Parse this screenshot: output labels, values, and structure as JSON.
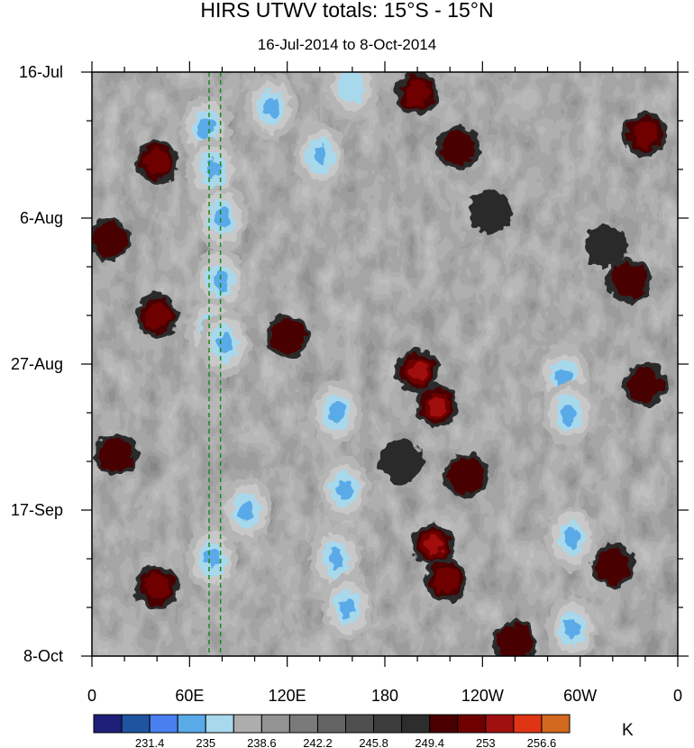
{
  "chart_data": {
    "type": "heatmap",
    "title": "HIRS UTWV totals: 15°S - 15°N",
    "subtitle": "16-Jul-2014 to 8-Oct-2014",
    "xlabel": "",
    "ylabel": "",
    "x_ticks": [
      {
        "lon": 0,
        "label": "0"
      },
      {
        "lon": 60,
        "label": "60E"
      },
      {
        "lon": 120,
        "label": "120E"
      },
      {
        "lon": 180,
        "label": "180"
      },
      {
        "lon": 240,
        "label": "120W"
      },
      {
        "lon": 300,
        "label": "60W"
      },
      {
        "lon": 360,
        "label": "0"
      }
    ],
    "xlim": [
      0,
      360
    ],
    "y_ticks": [
      {
        "day": 0,
        "label": "16-Jul"
      },
      {
        "day": 21,
        "label": "6-Aug"
      },
      {
        "day": 42,
        "label": "27-Aug"
      },
      {
        "day": 63,
        "label": "17-Sep"
      },
      {
        "day": 84,
        "label": "8-Oct"
      }
    ],
    "ylim_days": [
      0,
      84
    ],
    "reference_lines_lon": [
      72,
      79
    ],
    "reference_line_color": "#1a8a1a",
    "colorbar": {
      "unit": "K",
      "colors": [
        "#1f1f7a",
        "#1f55a0",
        "#4a7ff0",
        "#5aaae8",
        "#a8d8ec",
        "#adadad",
        "#939393",
        "#7a7a7a",
        "#636363",
        "#4f4f4f",
        "#3d3d3d",
        "#2d2d2d",
        "#4a0000",
        "#6e0000",
        "#a01010",
        "#e03515",
        "#d2691e"
      ],
      "labels": [
        "231.4",
        "235",
        "238.6",
        "242.2",
        "245.8",
        "249.4",
        "253",
        "256.6"
      ]
    },
    "features": [
      {
        "kind": "high",
        "lon": 70,
        "day": 8,
        "tier": 4
      },
      {
        "kind": "high",
        "lon": 74,
        "day": 14,
        "tier": 4
      },
      {
        "kind": "high",
        "lon": 80,
        "day": 21,
        "tier": 4
      },
      {
        "kind": "high",
        "lon": 79,
        "day": 30,
        "tier": 4
      },
      {
        "kind": "high",
        "lon": 74,
        "day": 37,
        "tier": 3
      },
      {
        "kind": "high",
        "lon": 82,
        "day": 39,
        "tier": 4
      },
      {
        "kind": "high",
        "lon": 110,
        "day": 5,
        "tier": 4
      },
      {
        "kind": "high",
        "lon": 160,
        "day": 2,
        "tier": 3
      },
      {
        "kind": "high",
        "lon": 150,
        "day": 49,
        "tier": 4
      },
      {
        "kind": "high",
        "lon": 150,
        "day": 70,
        "tier": 4
      },
      {
        "kind": "high",
        "lon": 157,
        "day": 77,
        "tier": 4
      },
      {
        "kind": "high",
        "lon": 74,
        "day": 70,
        "tier": 4
      },
      {
        "kind": "high",
        "lon": 290,
        "day": 44,
        "tier": 4
      },
      {
        "kind": "high",
        "lon": 293,
        "day": 49,
        "tier": 4
      },
      {
        "kind": "high",
        "lon": 295,
        "day": 67,
        "tier": 4
      },
      {
        "kind": "high",
        "lon": 295,
        "day": 80,
        "tier": 4
      },
      {
        "kind": "high",
        "lon": 140,
        "day": 12,
        "tier": 4
      },
      {
        "kind": "high",
        "lon": 155,
        "day": 60,
        "tier": 4
      },
      {
        "kind": "high",
        "lon": 95,
        "day": 63,
        "tier": 4
      },
      {
        "kind": "low",
        "lon": 200,
        "day": 3,
        "tier": 2
      },
      {
        "kind": "low",
        "lon": 225,
        "day": 11,
        "tier": 1
      },
      {
        "kind": "low",
        "lon": 340,
        "day": 9,
        "tier": 2
      },
      {
        "kind": "low",
        "lon": 40,
        "day": 13,
        "tier": 2
      },
      {
        "kind": "low",
        "lon": 40,
        "day": 35,
        "tier": 2
      },
      {
        "kind": "low",
        "lon": 200,
        "day": 43,
        "tier": 3
      },
      {
        "kind": "low",
        "lon": 212,
        "day": 48,
        "tier": 3
      },
      {
        "kind": "low",
        "lon": 210,
        "day": 68,
        "tier": 3
      },
      {
        "kind": "low",
        "lon": 218,
        "day": 73,
        "tier": 2
      },
      {
        "kind": "low",
        "lon": 40,
        "day": 74,
        "tier": 2
      },
      {
        "kind": "low",
        "lon": 340,
        "day": 45,
        "tier": 1
      },
      {
        "kind": "low",
        "lon": 320,
        "day": 71,
        "tier": 1
      },
      {
        "kind": "low",
        "lon": 260,
        "day": 82,
        "tier": 1
      },
      {
        "kind": "low",
        "lon": 245,
        "day": 20,
        "tier": 0
      },
      {
        "kind": "low",
        "lon": 315,
        "day": 25,
        "tier": 0
      },
      {
        "kind": "low",
        "lon": 190,
        "day": 56,
        "tier": 0
      },
      {
        "kind": "low",
        "lon": 230,
        "day": 58,
        "tier": 1
      },
      {
        "kind": "low",
        "lon": 120,
        "day": 38,
        "tier": 1
      },
      {
        "kind": "low",
        "lon": 10,
        "day": 24,
        "tier": 1
      },
      {
        "kind": "low",
        "lon": 15,
        "day": 55,
        "tier": 1
      },
      {
        "kind": "low",
        "lon": 330,
        "day": 30,
        "tier": 1
      }
    ]
  }
}
